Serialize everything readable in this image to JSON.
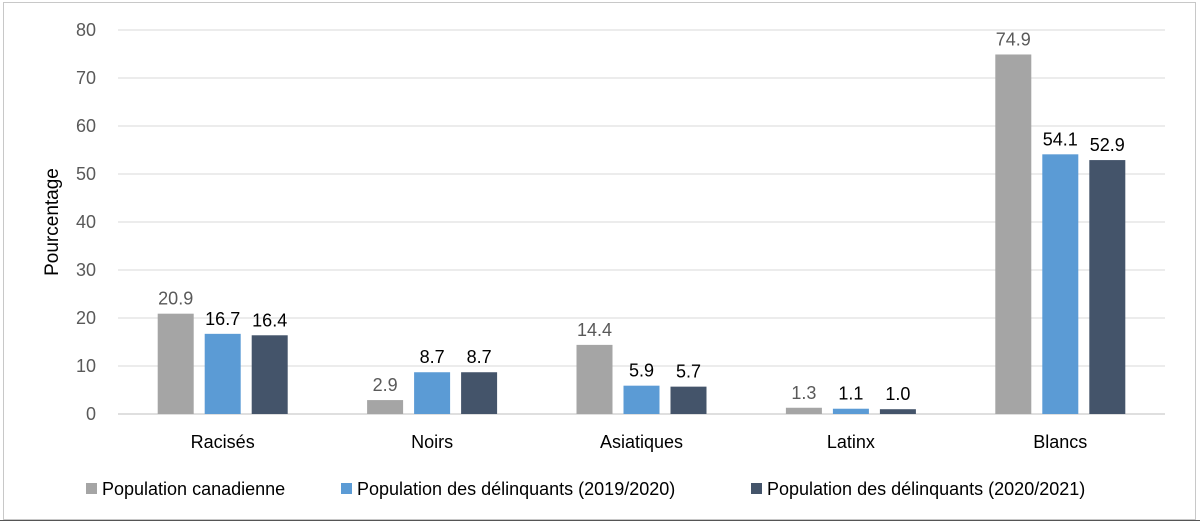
{
  "chart_data": {
    "type": "bar",
    "title": "",
    "xlabel": "",
    "ylabel": "Pourcentage",
    "ylim": [
      0,
      80
    ],
    "yticks": [
      0,
      10,
      20,
      30,
      40,
      50,
      60,
      70,
      80
    ],
    "grid": true,
    "legend_position": "bottom",
    "categories": [
      "Racisés",
      "Noirs",
      "Asiatiques",
      "Latinx",
      "Blancs"
    ],
    "series": [
      {
        "name": "Population canadienne",
        "color": "#a5a5a5",
        "label_color": "#595959",
        "values": [
          20.9,
          2.9,
          14.4,
          1.3,
          74.9
        ],
        "labels": [
          "20.9",
          "2.9",
          "14.4",
          "1.3",
          "74.9"
        ]
      },
      {
        "name": "Population des délinquants (2019/2020)",
        "color": "#5b9bd5",
        "label_color": "#000000",
        "values": [
          16.7,
          8.7,
          5.9,
          1.1,
          54.1
        ],
        "labels": [
          "16.7",
          "8.7",
          "5.9",
          "1.1",
          "54.1"
        ]
      },
      {
        "name": "Population des délinquants (2020/2021)",
        "color": "#44546a",
        "label_color": "#000000",
        "values": [
          16.4,
          8.7,
          5.7,
          1.0,
          52.9
        ],
        "labels": [
          "16.4",
          "8.7",
          "5.7",
          "1.0",
          "52.9"
        ]
      }
    ]
  }
}
